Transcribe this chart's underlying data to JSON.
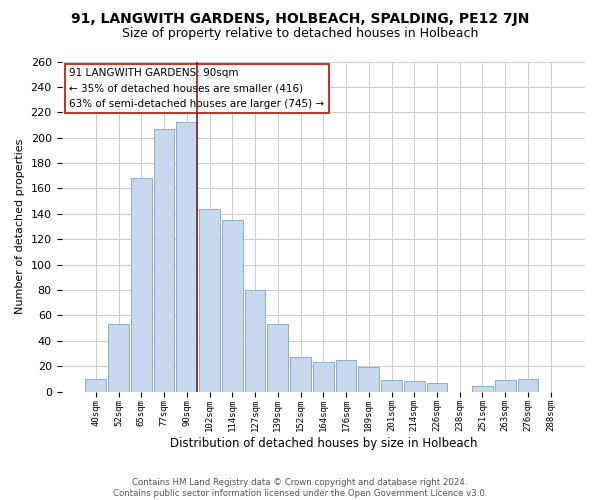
{
  "title": "91, LANGWITH GARDENS, HOLBEACH, SPALDING, PE12 7JN",
  "subtitle": "Size of property relative to detached houses in Holbeach",
  "xlabel": "Distribution of detached houses by size in Holbeach",
  "ylabel": "Number of detached properties",
  "bar_labels": [
    "40sqm",
    "52sqm",
    "65sqm",
    "77sqm",
    "90sqm",
    "102sqm",
    "114sqm",
    "127sqm",
    "139sqm",
    "152sqm",
    "164sqm",
    "176sqm",
    "189sqm",
    "201sqm",
    "214sqm",
    "226sqm",
    "238sqm",
    "251sqm",
    "263sqm",
    "276sqm",
    "288sqm"
  ],
  "bar_values": [
    10,
    53,
    168,
    207,
    212,
    144,
    135,
    80,
    53,
    27,
    23,
    25,
    19,
    9,
    8,
    7,
    0,
    4,
    9,
    10,
    0
  ],
  "bar_color": "#c5d8ed",
  "bar_edge_color": "#8ab0cc",
  "highlight_line_index": 4,
  "highlight_line_color": "#8b1a1a",
  "annotation_text_line1": "91 LANGWITH GARDENS: 90sqm",
  "annotation_text_line2": "← 35% of detached houses are smaller (416)",
  "annotation_text_line3": "63% of semi-detached houses are larger (745) →",
  "annotation_border_color": "#c0392b",
  "ylim": [
    0,
    260
  ],
  "yticks": [
    0,
    20,
    40,
    60,
    80,
    100,
    120,
    140,
    160,
    180,
    200,
    220,
    240,
    260
  ],
  "footer_line1": "Contains HM Land Registry data © Crown copyright and database right 2024.",
  "footer_line2": "Contains public sector information licensed under the Open Government Licence v3.0.",
  "background_color": "#ffffff",
  "grid_color": "#cccccc"
}
